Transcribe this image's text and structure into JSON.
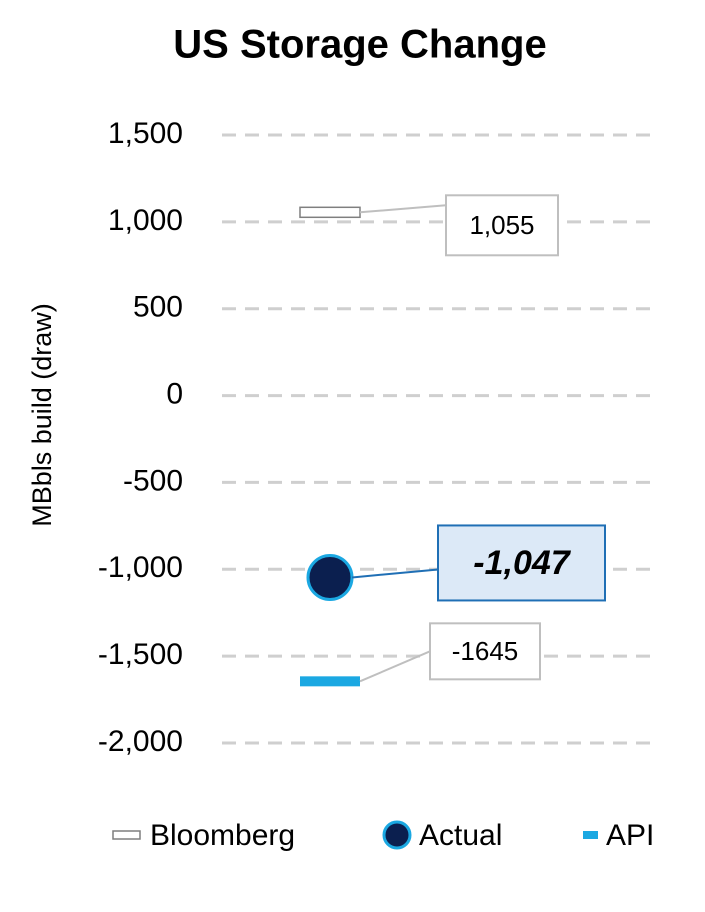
{
  "chart_data": {
    "type": "marker",
    "title": "US Storage Change",
    "y_label": "MBbls build (draw)",
    "categories": [
      null
    ],
    "series": [
      {
        "name": "Bloomberg",
        "marker": "dash",
        "color": "#ffffff",
        "edgecolor": "#7f7f7f",
        "values": [
          1055
        ],
        "value_labels": [
          "1,055"
        ]
      },
      {
        "name": "Actual",
        "marker": "circle",
        "color": "#0b1f4f",
        "edgecolor": "#1ba8e2",
        "values": [
          -1047
        ],
        "value_labels": [
          "-1,047"
        ]
      },
      {
        "name": "API",
        "marker": "dash",
        "color": "#1ba8e2",
        "edgecolor": "#1ba8e2",
        "values": [
          -1645
        ],
        "value_labels": [
          "-1645"
        ]
      }
    ],
    "ylim": [
      -2000,
      1500
    ],
    "yticks": [
      {
        "value": 1500,
        "label": "1,500"
      },
      {
        "value": 1000,
        "label": "1,000"
      },
      500,
      0,
      -500,
      {
        "value": -1000,
        "label": "-1,000"
      },
      {
        "value": -1500,
        "label": "-1,500"
      },
      {
        "value": -2000,
        "label": "-2,000"
      }
    ],
    "grid": true,
    "legend": "bottom"
  }
}
